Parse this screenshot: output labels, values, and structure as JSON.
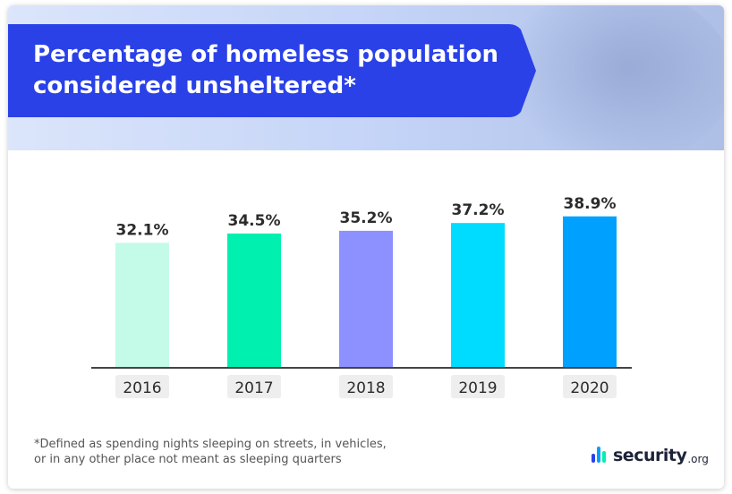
{
  "title": "Percentage of homeless population considered unsheltered*",
  "title_lines": [
    "Percentage of homeless population",
    "considered unsheltered*"
  ],
  "footnote_lines": [
    "*Defined as spending nights sleeping on streets, in vehicles,",
    "or in any other place not meant as sleeping quarters"
  ],
  "logo": {
    "name": "security",
    "suffix": ".org"
  },
  "colors": {
    "banner": "#2a41e8",
    "axis": "#444444",
    "tick_label_bg": "#eeeeee",
    "text": "#2b2b2b"
  },
  "chart_data": {
    "type": "bar",
    "categories": [
      "2016",
      "2017",
      "2018",
      "2019",
      "2020"
    ],
    "values": [
      32.1,
      34.5,
      35.2,
      37.2,
      38.9
    ],
    "value_labels": [
      "32.1%",
      "34.5%",
      "35.2%",
      "37.2%",
      "38.9%"
    ],
    "bar_colors": [
      "#c3fae8",
      "#00f0b0",
      "#8c91ff",
      "#00dcff",
      "#00a0ff"
    ],
    "ylim": [
      0,
      40
    ],
    "grid": false,
    "legend": "none",
    "xlabel": "",
    "ylabel": ""
  }
}
